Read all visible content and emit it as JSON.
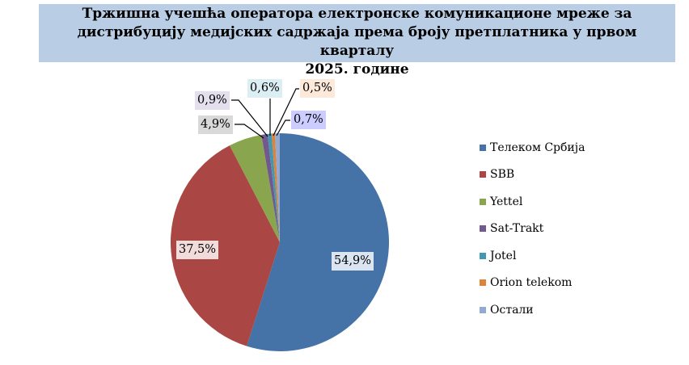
{
  "chart_data": {
    "type": "pie",
    "title": "Тржишна учешћа оператора електронске комуникационе мреже за дистрибуцију медијских садржаја према броју претплатника у првом кварталу 2025. године",
    "title_lines": [
      "Тржишна учешћа оператора електронске комуникационе мреже за",
      "дистрибуцију медијских садржаја према броју претплатника у првом кварталу",
      "2025. године"
    ],
    "legend_position": "right",
    "slices": [
      {
        "name": "Телеком Србија",
        "value": 54.9,
        "label": "54,9%",
        "color": "#4572a7",
        "label_bg": "#dbe5f1"
      },
      {
        "name": "SBB",
        "value": 37.5,
        "label": "37,5%",
        "color": "#aa4643",
        "label_bg": "#f2dcdb"
      },
      {
        "name": "Yettel",
        "value": 4.9,
        "label": "4,9%",
        "color": "#89a54e",
        "label_bg": "#d9d9d9"
      },
      {
        "name": "Sat-Trakt",
        "value": 0.9,
        "label": "0,9%",
        "color": "#71588f",
        "label_bg": "#e4dfec"
      },
      {
        "name": "Jotel",
        "value": 0.6,
        "label": "0,6%",
        "color": "#4198af",
        "label_bg": "#dbeef4"
      },
      {
        "name": "Orion telekom",
        "value": 0.5,
        "label": "0,5%",
        "color": "#db843d",
        "label_bg": "#fde9d9"
      },
      {
        "name": "Остали",
        "value": 0.7,
        "label": "0,7%",
        "color": "#93a9cf",
        "label_bg": "#ccccff"
      }
    ]
  }
}
